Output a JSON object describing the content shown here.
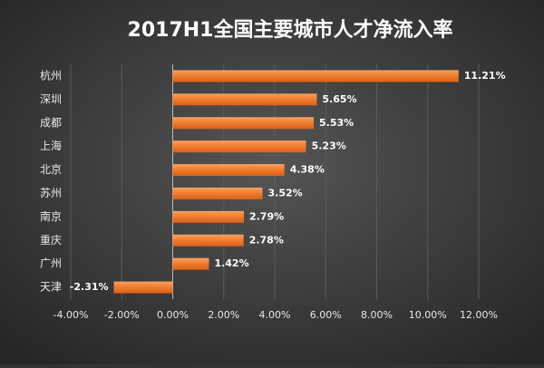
{
  "chart_data": {
    "type": "bar",
    "orientation": "horizontal",
    "title": "2017H1全国主要城市人才净流入率",
    "categories": [
      "杭州",
      "深圳",
      "成都",
      "上海",
      "北京",
      "苏州",
      "南京",
      "重庆",
      "广州",
      "天津"
    ],
    "values": [
      11.21,
      5.65,
      5.53,
      5.23,
      4.38,
      3.52,
      2.79,
      2.78,
      1.42,
      -2.31
    ],
    "value_labels": [
      "11.21%",
      "5.65%",
      "5.53%",
      "5.23%",
      "4.38%",
      "3.52%",
      "2.79%",
      "2.78%",
      "1.42%",
      "-2.31%"
    ],
    "color": "#f07a2c",
    "xlim": [
      -4,
      12
    ],
    "xticks": [
      {
        "value": -4,
        "label": "-4.00%"
      },
      {
        "value": -2,
        "label": "-2.00%"
      },
      {
        "value": 0,
        "label": "0.00%"
      },
      {
        "value": 2,
        "label": "2.00%"
      },
      {
        "value": 4,
        "label": "4.00%"
      },
      {
        "value": 6,
        "label": "6.00%"
      },
      {
        "value": 8,
        "label": "8.00%"
      },
      {
        "value": 10,
        "label": "10.00%"
      },
      {
        "value": 12,
        "label": "12.00%"
      }
    ],
    "grid": true
  }
}
